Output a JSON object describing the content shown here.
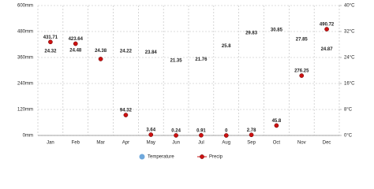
{
  "chart_data": {
    "type": "climate",
    "categories": [
      "Jan",
      "Feb",
      "Mar",
      "Apr",
      "May",
      "Jun",
      "Jul",
      "Aug",
      "Sep",
      "Oct",
      "Nov",
      "Dec"
    ],
    "series": [
      {
        "name": "Temperature",
        "color": "#6fa8dc",
        "axis": "y2",
        "values": [
          24.32,
          24.48,
          24.38,
          24.22,
          23.84,
          21.35,
          21.76,
          25.8,
          29.83,
          30.85,
          27.85,
          24.87
        ]
      },
      {
        "name": "Precip",
        "color": "#cc1111",
        "values": [
          431.71,
          423.64,
          353,
          94.32,
          3.64,
          0.24,
          0.91,
          0,
          2.78,
          45.8,
          276.25,
          490.72
        ],
        "value_labels": [
          "431.71",
          "423.64",
          null,
          "94.32",
          "3.64",
          "0.24",
          "0.91",
          "0",
          "2.78",
          "45.8",
          "276.25",
          "490.72"
        ]
      }
    ],
    "ylim": [
      0,
      600
    ],
    "yticks": [
      {
        "value": 0,
        "label": "0mm"
      },
      {
        "value": 120,
        "label": "120mm"
      },
      {
        "value": 240,
        "label": "240mm"
      },
      {
        "value": 360,
        "label": "360mm"
      },
      {
        "value": 480,
        "label": "480mm"
      },
      {
        "value": 600,
        "label": "600mm"
      }
    ],
    "y2lim": [
      0,
      40
    ],
    "y2ticks": [
      {
        "value": 0,
        "label": "0°C"
      },
      {
        "value": 8,
        "label": "8°C"
      },
      {
        "value": 16,
        "label": "16°C"
      },
      {
        "value": 24,
        "label": "24°C"
      },
      {
        "value": 32,
        "label": "32°C"
      },
      {
        "value": 40,
        "label": "40°C"
      }
    ],
    "grid": true
  }
}
